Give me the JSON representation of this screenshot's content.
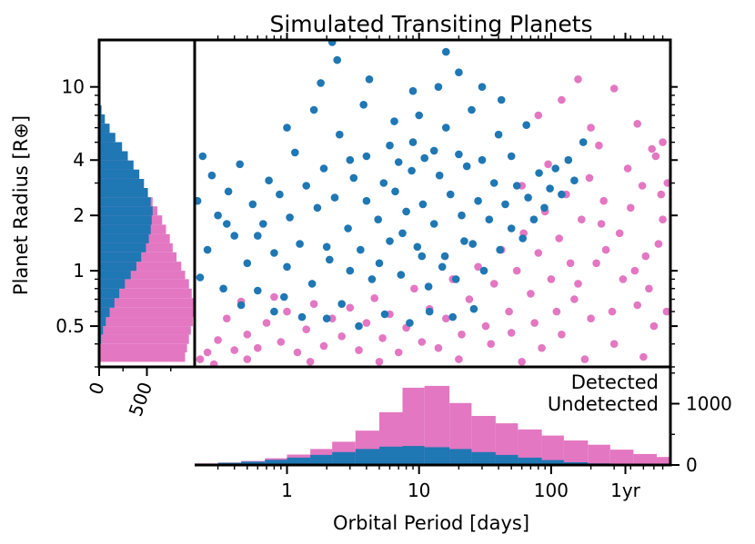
{
  "colors": {
    "detected": "#1f77b4",
    "undetected": "#e377c2",
    "axes": "#000000"
  },
  "chart_data": {
    "type": "scatter",
    "title": "Simulated Transiting Planets",
    "xlabel": "Orbital Period [days]",
    "ylabel": "Planet Radius [R⊕]",
    "xscale": "log",
    "yscale": "log",
    "xlim": [
      0.2,
      800
    ],
    "ylim": [
      0.3,
      18
    ],
    "x_ticks": [
      {
        "value": 1,
        "label": "1"
      },
      {
        "value": 10,
        "label": "10"
      },
      {
        "value": 100,
        "label": "100"
      },
      {
        "value": 365,
        "label": "1yr"
      }
    ],
    "y_ticks": [
      {
        "value": 0.5,
        "label": "0.5"
      },
      {
        "value": 1,
        "label": "1"
      },
      {
        "value": 2,
        "label": "2"
      },
      {
        "value": 4,
        "label": "4"
      },
      {
        "value": 10,
        "label": "10"
      }
    ],
    "legend": [
      "Detected",
      "Undetected"
    ],
    "series": [
      {
        "name": "Undetected",
        "color": "#e377c2",
        "points": [
          [
            0.25,
            0.36
          ],
          [
            0.3,
            0.42
          ],
          [
            0.35,
            0.55
          ],
          [
            0.4,
            0.37
          ],
          [
            0.45,
            0.68
          ],
          [
            0.5,
            0.45
          ],
          [
            0.6,
            0.38
          ],
          [
            0.7,
            0.52
          ],
          [
            0.8,
            0.72
          ],
          [
            0.9,
            0.41
          ],
          [
            1.0,
            0.6
          ],
          [
            1.2,
            0.36
          ],
          [
            1.4,
            0.48
          ],
          [
            1.6,
            0.66
          ],
          [
            1.9,
            0.39
          ],
          [
            2.2,
            0.55
          ],
          [
            2.6,
            0.44
          ],
          [
            3.0,
            0.63
          ],
          [
            3.5,
            0.37
          ],
          [
            4.0,
            0.52
          ],
          [
            4.6,
            0.71
          ],
          [
            5.3,
            0.43
          ],
          [
            6.0,
            0.58
          ],
          [
            7.0,
            0.36
          ],
          [
            8.0,
            0.49
          ],
          [
            9.2,
            0.8
          ],
          [
            10.5,
            0.41
          ],
          [
            12,
            0.62
          ],
          [
            14,
            0.38
          ],
          [
            16,
            0.55
          ],
          [
            18,
            0.9
          ],
          [
            21,
            0.45
          ],
          [
            24,
            0.7
          ],
          [
            28,
            1.05
          ],
          [
            32,
            0.5
          ],
          [
            37,
            0.85
          ],
          [
            42,
            1.3
          ],
          [
            48,
            0.6
          ],
          [
            55,
            1.0
          ],
          [
            62,
            1.6
          ],
          [
            70,
            0.75
          ],
          [
            80,
            1.25
          ],
          [
            90,
            2.1
          ],
          [
            100,
            0.9
          ],
          [
            115,
            1.5
          ],
          [
            130,
            2.6
          ],
          [
            150,
            0.7
          ],
          [
            170,
            1.9
          ],
          [
            195,
            3.2
          ],
          [
            220,
            1.1
          ],
          [
            250,
            2.4
          ],
          [
            290,
            0.6
          ],
          [
            330,
            1.6
          ],
          [
            380,
            3.6
          ],
          [
            430,
            1.0
          ],
          [
            490,
            2.9
          ],
          [
            550,
            0.8
          ],
          [
            620,
            4.2
          ],
          [
            700,
            1.9
          ],
          [
            760,
            3.0
          ],
          [
            120,
            0.45
          ],
          [
            200,
            0.55
          ],
          [
            300,
            0.4
          ],
          [
            450,
            0.65
          ],
          [
            600,
            0.5
          ],
          [
            85,
            0.38
          ],
          [
            160,
            0.85
          ],
          [
            260,
            1.3
          ],
          [
            400,
            2.2
          ],
          [
            650,
            1.4
          ],
          [
            0.22,
            0.33
          ],
          [
            0.28,
            0.31
          ],
          [
            0.5,
            0.33
          ],
          [
            1.5,
            0.32
          ],
          [
            5,
            0.32
          ],
          [
            20,
            0.33
          ],
          [
            60,
            0.32
          ],
          [
            180,
            0.33
          ],
          [
            500,
            0.34
          ],
          [
            750,
            0.6
          ],
          [
            35,
            0.4
          ],
          [
            50,
            0.46
          ],
          [
            75,
            0.52
          ],
          [
            110,
            0.6
          ],
          [
            140,
            1.1
          ],
          [
            240,
            1.8
          ],
          [
            350,
            0.9
          ],
          [
            520,
            1.2
          ],
          [
            680,
            2.6
          ],
          [
            580,
            4.6
          ],
          [
            80,
            7.0
          ],
          [
            120,
            8.5
          ],
          [
            200,
            6.0
          ],
          [
            300,
            9.8
          ],
          [
            160,
            11.0
          ],
          [
            230,
            4.8
          ],
          [
            450,
            6.3
          ],
          [
            700,
            5.0
          ],
          [
            95,
            3.8
          ],
          [
            60,
            2.9
          ]
        ]
      },
      {
        "name": "Detected",
        "color": "#1f77b4",
        "points": [
          [
            0.21,
            2.4
          ],
          [
            0.22,
            0.92
          ],
          [
            0.23,
            4.2
          ],
          [
            0.25,
            1.3
          ],
          [
            0.27,
            3.3
          ],
          [
            0.3,
            2.0
          ],
          [
            0.33,
            0.8
          ],
          [
            0.36,
            2.7
          ],
          [
            0.4,
            1.55
          ],
          [
            0.44,
            3.8
          ],
          [
            0.5,
            1.1
          ],
          [
            0.55,
            2.3
          ],
          [
            0.6,
            0.78
          ],
          [
            0.66,
            1.8
          ],
          [
            0.73,
            3.1
          ],
          [
            0.8,
            1.25
          ],
          [
            0.88,
            2.6
          ],
          [
            0.95,
            0.72
          ],
          [
            1.05,
            1.95
          ],
          [
            1.15,
            4.4
          ],
          [
            1.25,
            1.4
          ],
          [
            1.4,
            2.9
          ],
          [
            1.55,
            0.85
          ],
          [
            1.7,
            2.2
          ],
          [
            1.9,
            3.6
          ],
          [
            2.1,
            1.15
          ],
          [
            2.3,
            2.5
          ],
          [
            2.6,
            0.66
          ],
          [
            2.9,
            1.7
          ],
          [
            3.2,
            3.2
          ],
          [
            3.6,
            1.3
          ],
          [
            4.0,
            2.4
          ],
          [
            4.4,
            0.9
          ],
          [
            4.9,
            1.9
          ],
          [
            5.4,
            3.0
          ],
          [
            6.0,
            1.45
          ],
          [
            6.6,
            2.7
          ],
          [
            7.3,
            0.95
          ],
          [
            8.0,
            2.1
          ],
          [
            8.8,
            3.5
          ],
          [
            9.7,
            1.35
          ],
          [
            10.7,
            2.3
          ],
          [
            11.8,
            0.82
          ],
          [
            13,
            1.8
          ],
          [
            14.3,
            3.3
          ],
          [
            15.7,
            1.2
          ],
          [
            17.3,
            2.6
          ],
          [
            19,
            0.9
          ],
          [
            21,
            2.0
          ],
          [
            23,
            3.7
          ],
          [
            25.5,
            1.4
          ],
          [
            28,
            2.4
          ],
          [
            31,
            1.0
          ],
          [
            34,
            1.9
          ],
          [
            37,
            3.0
          ],
          [
            41,
            1.3
          ],
          [
            45,
            2.3
          ],
          [
            50,
            1.7
          ],
          [
            55,
            2.9
          ],
          [
            61,
            1.5
          ],
          [
            67,
            2.5
          ],
          [
            74,
            1.9
          ],
          [
            81,
            3.4
          ],
          [
            89,
            2.2
          ],
          [
            98,
            2.8
          ],
          [
            108,
            3.6
          ],
          [
            120,
            2.6
          ],
          [
            135,
            4.0
          ],
          [
            150,
            3.1
          ],
          [
            175,
            5.0
          ],
          [
            2.0,
            0.55
          ],
          [
            3.5,
            0.5
          ],
          [
            5.5,
            0.58
          ],
          [
            8.5,
            0.52
          ],
          [
            12,
            0.6
          ],
          [
            18,
            0.56
          ],
          [
            26,
            0.62
          ],
          [
            0.8,
            0.6
          ],
          [
            0.45,
            0.65
          ],
          [
            1.3,
            0.56
          ],
          [
            1.0,
            6.0
          ],
          [
            1.6,
            7.5
          ],
          [
            2.5,
            5.5
          ],
          [
            3.8,
            8.0
          ],
          [
            6.5,
            6.5
          ],
          [
            10,
            7.0
          ],
          [
            16,
            6.0
          ],
          [
            25,
            7.5
          ],
          [
            40,
            5.5
          ],
          [
            65,
            6.2
          ],
          [
            1.8,
            10.5
          ],
          [
            4.2,
            11.0
          ],
          [
            9,
            9.5
          ],
          [
            14,
            10.0
          ],
          [
            20,
            12.0
          ],
          [
            30,
            10.0
          ],
          [
            42,
            8.5
          ],
          [
            2.2,
            17.5
          ],
          [
            2.4,
            14.0
          ],
          [
            16,
            15.5
          ],
          [
            4.0,
            4.2
          ],
          [
            6.0,
            4.8
          ],
          [
            9.0,
            5.0
          ],
          [
            13,
            4.5
          ],
          [
            20,
            4.3
          ],
          [
            30,
            4.0
          ],
          [
            7.0,
            3.9
          ],
          [
            11,
            4.1
          ],
          [
            3.0,
            4.0
          ],
          [
            50,
            4.2
          ],
          [
            5.0,
            1.1
          ],
          [
            7.5,
            1.6
          ],
          [
            10.5,
            1.2
          ],
          [
            3.0,
            1.0
          ],
          [
            2.0,
            1.35
          ],
          [
            15,
            1.05
          ],
          [
            22,
            1.45
          ],
          [
            0.6,
            1.55
          ],
          [
            0.35,
            1.8
          ],
          [
            1.0,
            1.05
          ]
        ]
      }
    ],
    "period_histogram": {
      "bin_edges": [
        0.2,
        0.3,
        0.45,
        0.68,
        1.0,
        1.5,
        2.2,
        3.3,
        5.0,
        7.5,
        11,
        17,
        25,
        38,
        56,
        85,
        125,
        190,
        280,
        420,
        630,
        800
      ],
      "detected": [
        22,
        35,
        55,
        85,
        120,
        165,
        210,
        260,
        300,
        310,
        290,
        260,
        210,
        165,
        120,
        80,
        45,
        25,
        12,
        5,
        3
      ],
      "undetected": [
        25,
        40,
        65,
        110,
        170,
        260,
        380,
        560,
        860,
        1260,
        1290,
        1010,
        800,
        680,
        580,
        480,
        400,
        330,
        250,
        180,
        130
      ]
    },
    "period_hist_ticks": [
      {
        "value": 0,
        "label": "0"
      },
      {
        "value": 1000,
        "label": "1000"
      }
    ],
    "radius_histogram": {
      "bin_edges": [
        0.32,
        0.36,
        0.4,
        0.45,
        0.5,
        0.56,
        0.63,
        0.71,
        0.8,
        0.9,
        1.0,
        1.12,
        1.26,
        1.41,
        1.58,
        1.78,
        2.0,
        2.24,
        2.51,
        2.82,
        3.16,
        3.55,
        3.98,
        4.47,
        5.01,
        5.62,
        6.31,
        7.08,
        7.94
      ],
      "detected": [
        5,
        10,
        20,
        40,
        70,
        110,
        160,
        210,
        270,
        330,
        390,
        440,
        490,
        520,
        540,
        550,
        560,
        540,
        510,
        470,
        420,
        360,
        300,
        240,
        170,
        110,
        60,
        25
      ],
      "undetected": [
        900,
        920,
        940,
        960,
        980,
        1000,
        990,
        970,
        940,
        900,
        860,
        810,
        770,
        740,
        700,
        660,
        610,
        560,
        500,
        440,
        380,
        310,
        250,
        190,
        140,
        90,
        50,
        20
      ]
    },
    "radius_hist_ticks": [
      {
        "value": 0,
        "label": "0"
      },
      {
        "value": 500,
        "label": "500"
      }
    ]
  }
}
